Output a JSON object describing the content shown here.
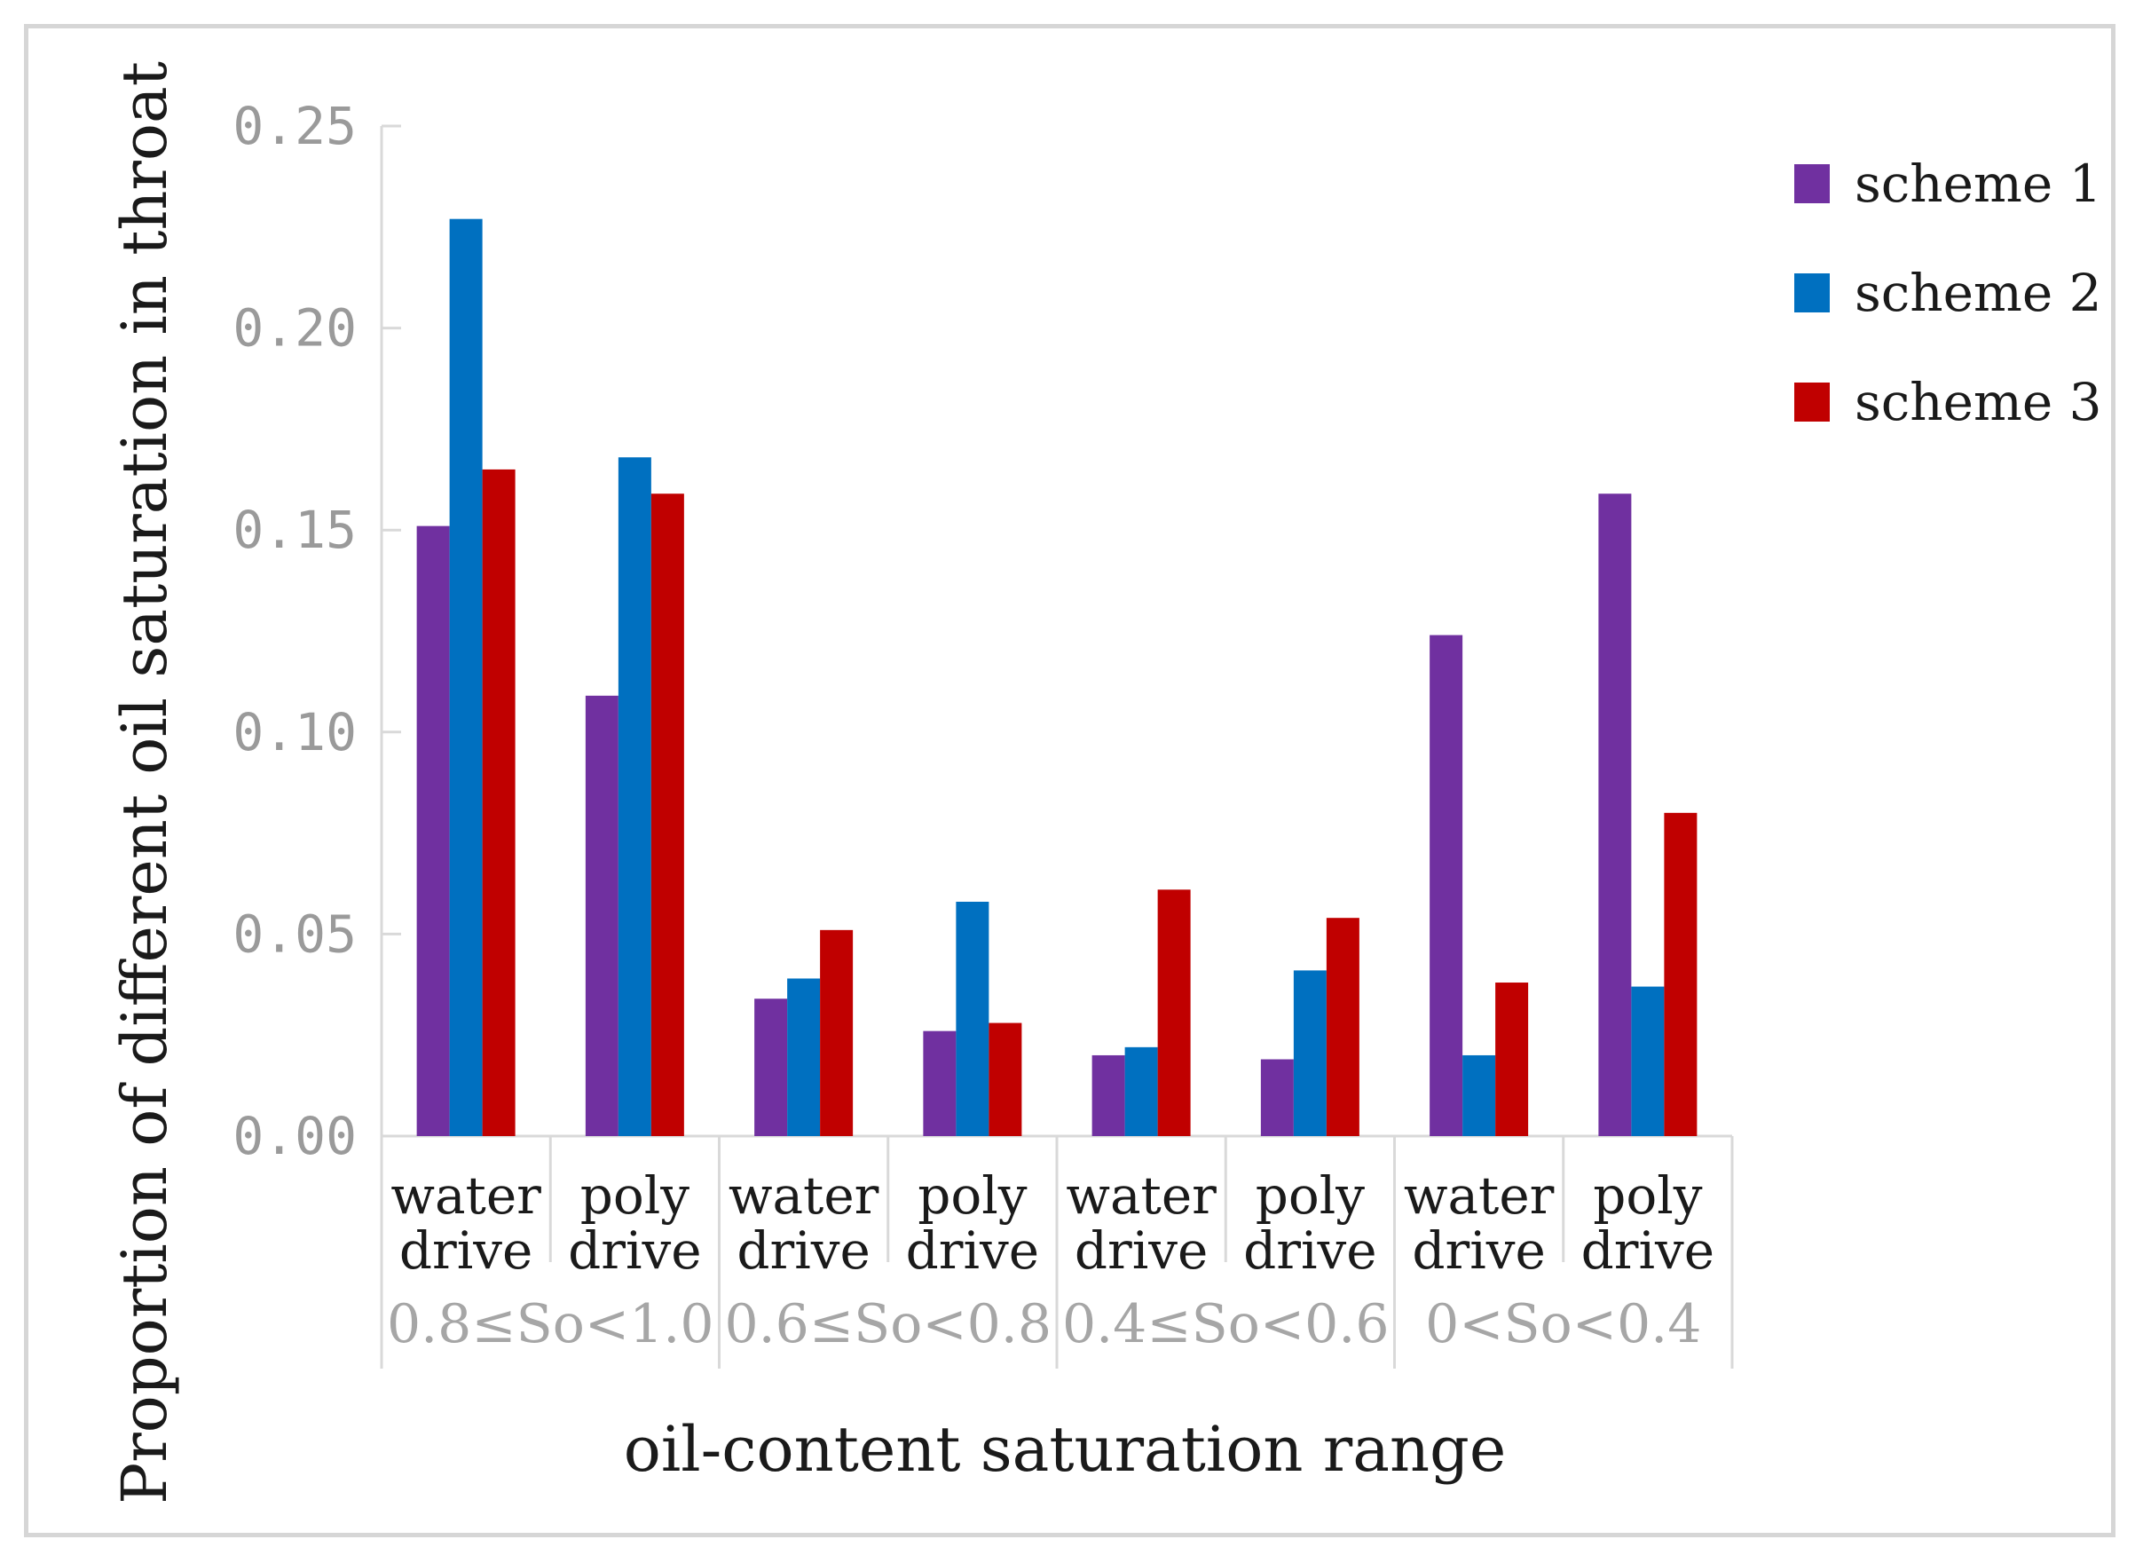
{
  "chart_data": {
    "type": "bar",
    "title": "",
    "xlabel": "oil-content saturation range",
    "ylabel": "Proportion of different oil saturation in throat",
    "ylim": [
      0,
      0.25
    ],
    "yticks": [
      "0.00",
      "0.05",
      "0.10",
      "0.15",
      "0.20",
      "0.25"
    ],
    "grid": false,
    "legend_position": "top-right",
    "categories": [
      [
        "water",
        "drive"
      ],
      [
        "poly",
        "drive"
      ],
      [
        "water",
        "drive"
      ],
      [
        "poly",
        "drive"
      ],
      [
        "water",
        "drive"
      ],
      [
        "poly",
        "drive"
      ],
      [
        "water",
        "drive"
      ],
      [
        "poly",
        "drive"
      ]
    ],
    "groups": [
      "0.8≤So<1.0",
      "0.6≤So<0.8",
      "0.4≤So<0.6",
      "0<So<0.4"
    ],
    "series": [
      {
        "name": "scheme 1",
        "color": "#7030a0",
        "values": [
          0.151,
          0.109,
          0.034,
          0.026,
          0.02,
          0.019,
          0.124,
          0.159
        ]
      },
      {
        "name": "scheme 2",
        "color": "#0070c0",
        "values": [
          0.227,
          0.168,
          0.039,
          0.058,
          0.022,
          0.041,
          0.02,
          0.037
        ]
      },
      {
        "name": "scheme 3",
        "color": "#c00000",
        "values": [
          0.165,
          0.159,
          0.051,
          0.028,
          0.061,
          0.054,
          0.038,
          0.08
        ]
      }
    ]
  }
}
